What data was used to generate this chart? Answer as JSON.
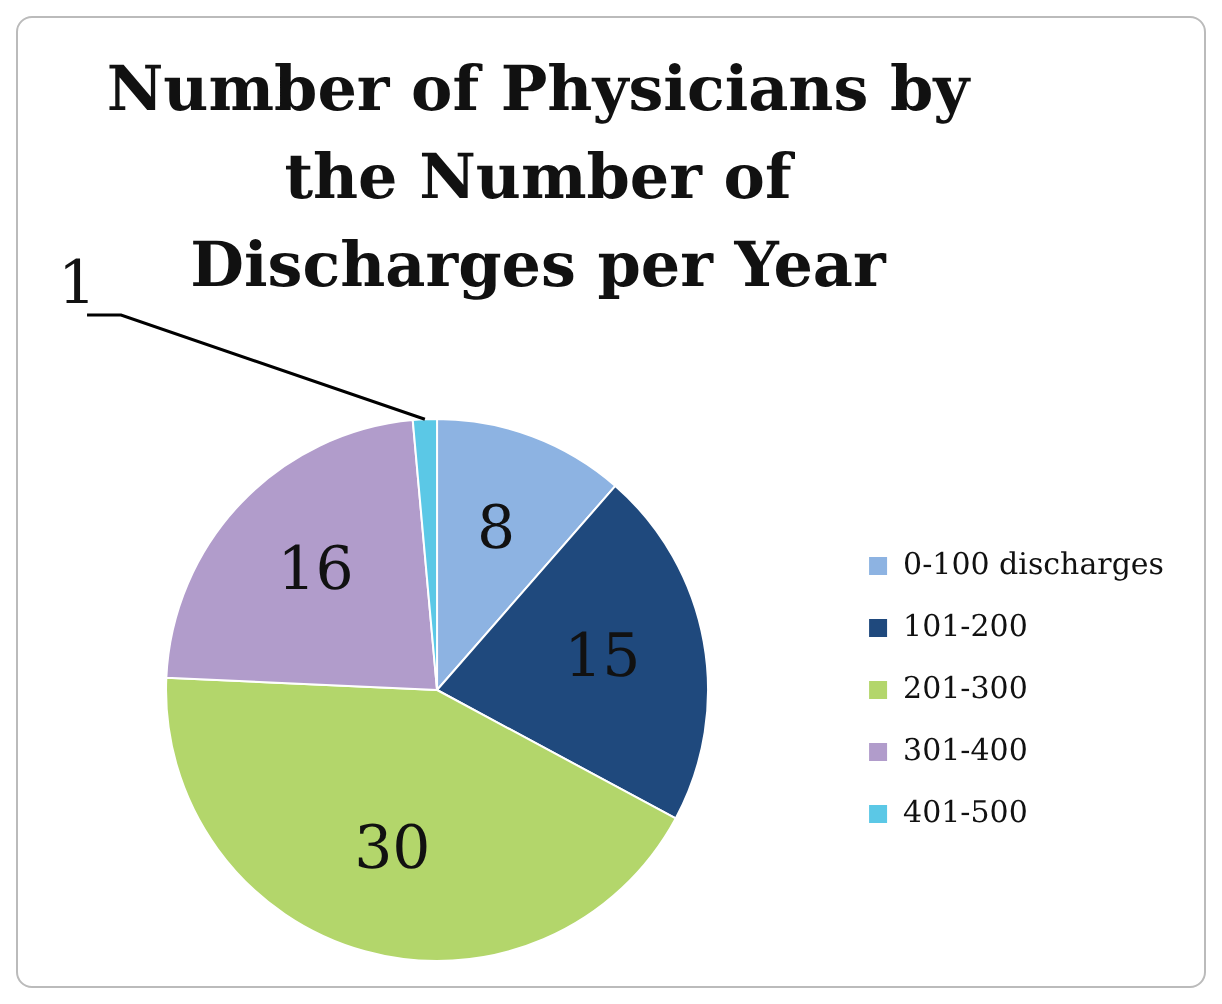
{
  "chart_data": {
    "type": "pie",
    "title": "Number of Physicians by the Number of Discharges per Year",
    "categories": [
      "0-100 discharges",
      "101-200",
      "201-300",
      "301-400",
      "401-500"
    ],
    "values": [
      8,
      15,
      30,
      16,
      1
    ],
    "colors": [
      "#8db3e2",
      "#1f497d",
      "#b3d66b",
      "#b19ccb",
      "#5bc8e6"
    ],
    "data_labels": true,
    "legend": "right"
  }
}
